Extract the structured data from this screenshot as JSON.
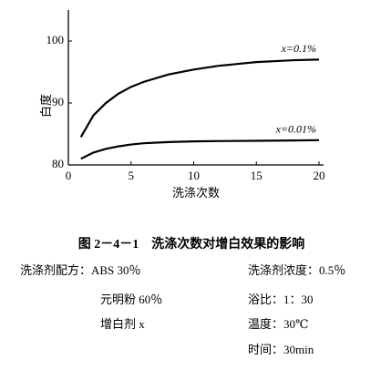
{
  "chart_data": {
    "type": "line",
    "title": "图 2－4－1　洗涤次数对增白效果的影响",
    "xlabel": "洗涤次数",
    "ylabel": "白度",
    "x": [
      1,
      2,
      3,
      4,
      5,
      6,
      8,
      10,
      12,
      15,
      18,
      20
    ],
    "series": [
      {
        "name": "x=0.1%",
        "color": "#000000",
        "values": [
          84.5,
          88,
          90,
          91.5,
          92.6,
          93.4,
          94.6,
          95.4,
          96,
          96.6,
          96.9,
          97
        ]
      },
      {
        "name": "x=0.01%",
        "color": "#000000",
        "values": [
          81,
          82,
          82.6,
          83,
          83.3,
          83.5,
          83.7,
          83.8,
          83.85,
          83.9,
          83.95,
          84
        ]
      }
    ],
    "xlim": [
      0,
      20
    ],
    "ylim": [
      80,
      105
    ],
    "xticks": [
      0,
      5,
      10,
      15,
      20
    ],
    "yticks": [
      80,
      90,
      100
    ]
  },
  "notes": {
    "left": [
      "洗涤剂配方：ABS 30％",
      "元明粉 60％",
      "增白剂 x"
    ],
    "right": [
      "洗涤剂浓度：0.5％",
      "浴比：1：30",
      "温度：30℃",
      "时间：30min"
    ]
  }
}
